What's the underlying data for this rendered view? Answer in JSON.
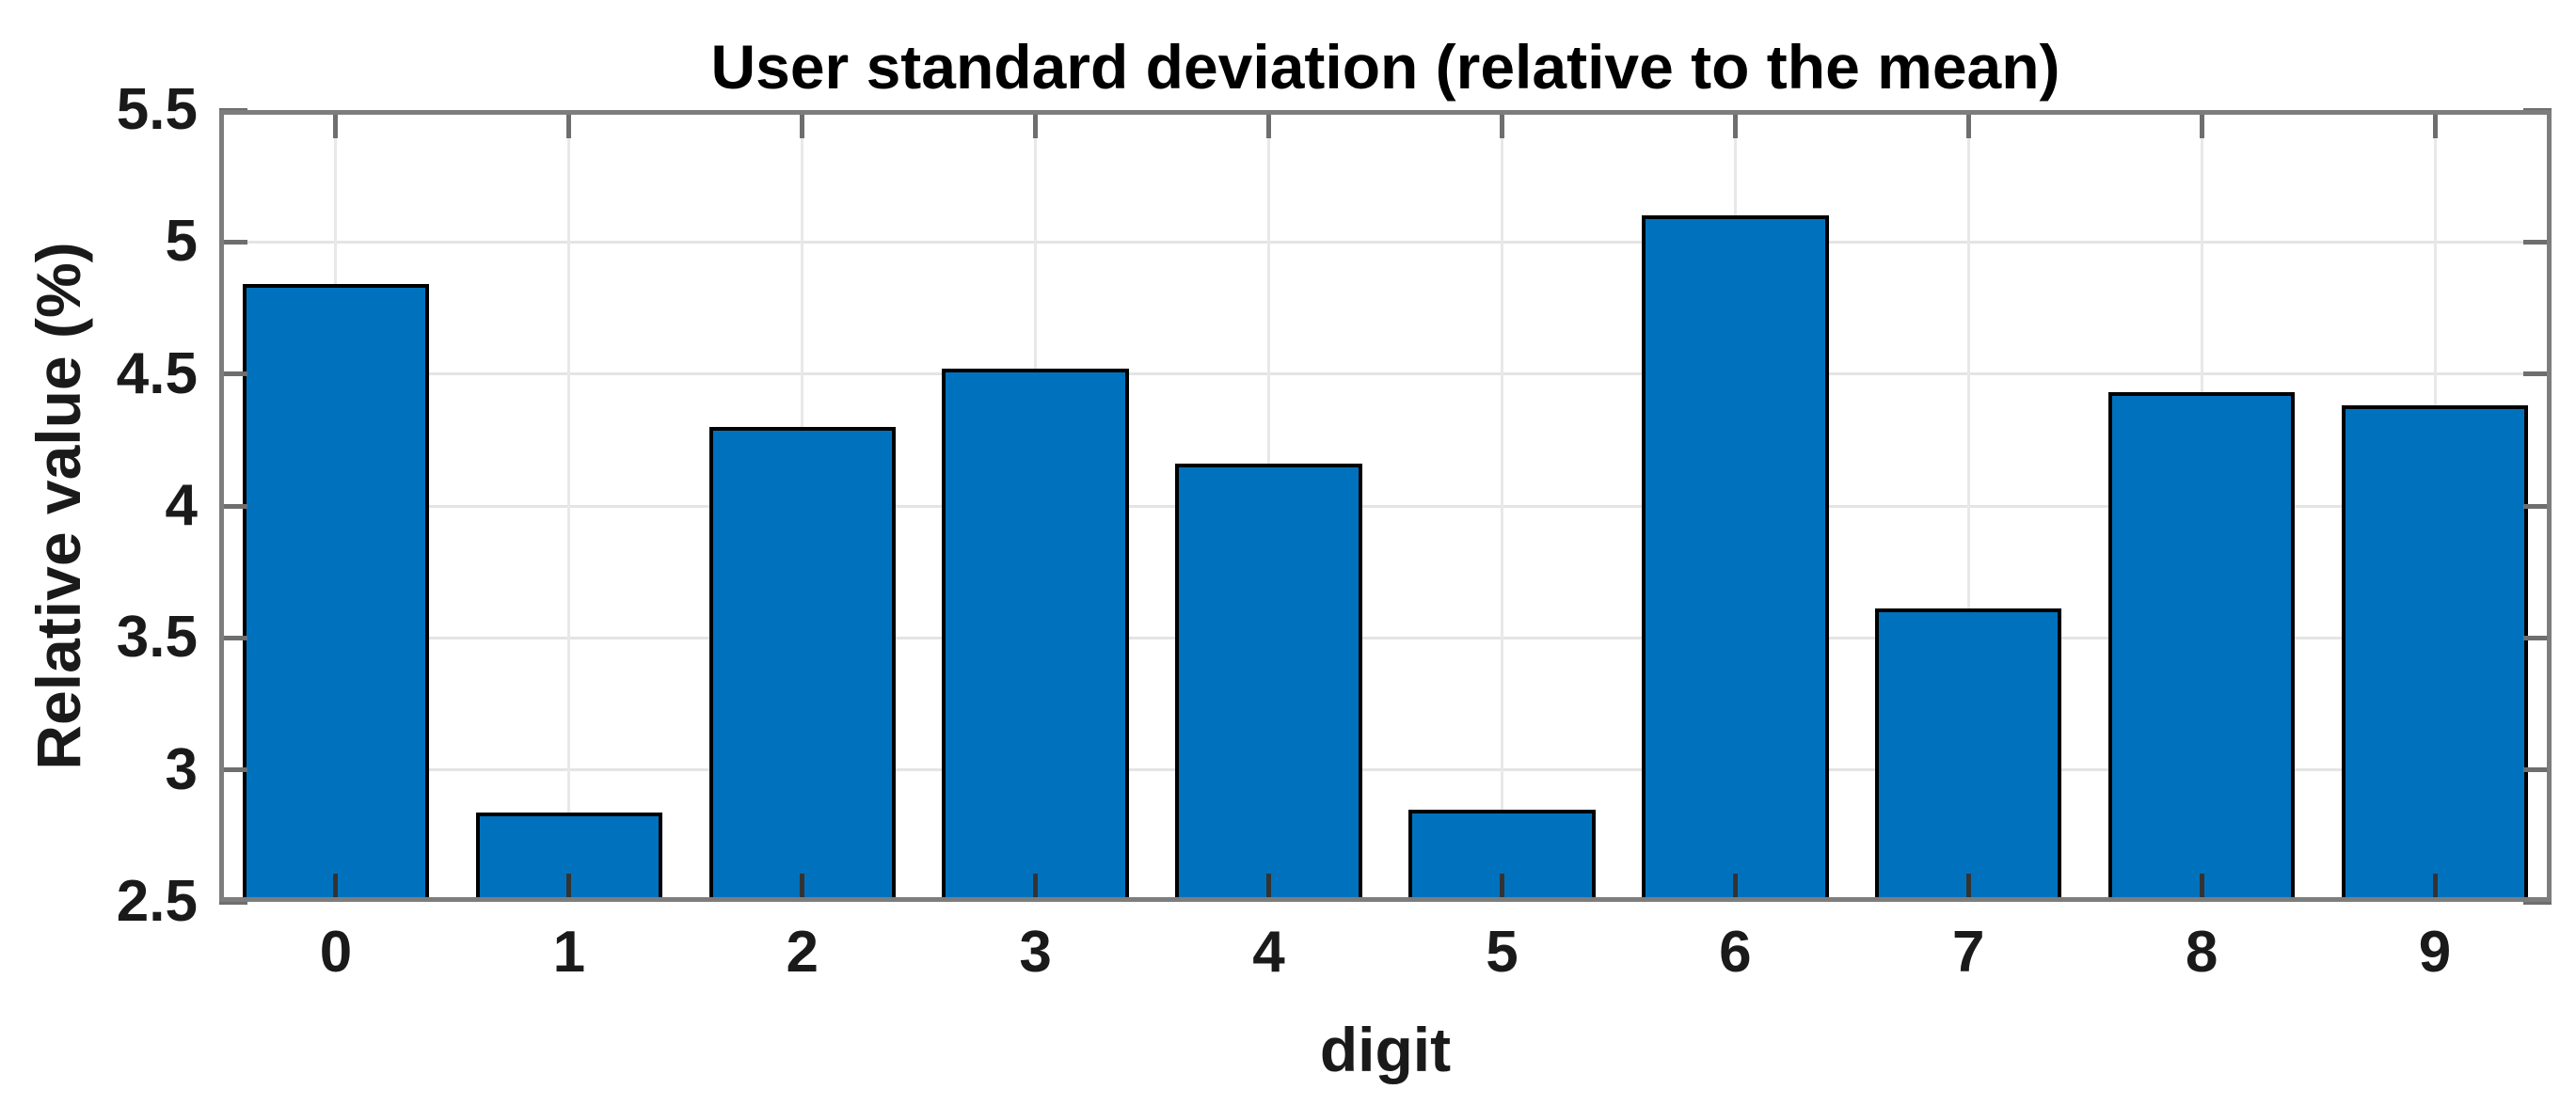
{
  "chart_data": {
    "type": "bar",
    "title": "User standard deviation (relative to the mean)",
    "xlabel": "digit",
    "ylabel": "Relative value (%)",
    "categories": [
      "0",
      "1",
      "2",
      "3",
      "4",
      "5",
      "6",
      "7",
      "8",
      "9"
    ],
    "values": [
      4.84,
      2.84,
      4.3,
      4.52,
      4.16,
      2.85,
      5.1,
      3.61,
      4.43,
      4.38
    ],
    "ylim": [
      2.5,
      5.5
    ],
    "yticks": [
      2.5,
      3,
      3.5,
      4,
      4.5,
      5,
      5.5
    ],
    "ytick_labels": [
      "2.5",
      "3",
      "3.5",
      "4",
      "4.5",
      "5",
      "5.5"
    ],
    "grid": "on",
    "legend": "none",
    "bar_width_fraction": 0.8,
    "bar_color": "#0072BD",
    "bar_edge_color": "#000000",
    "grid_color": "#e4e4e4",
    "axis_color": "#7d7d7d",
    "text_color": "#1a1a1a",
    "background_color": "#ffffff"
  }
}
